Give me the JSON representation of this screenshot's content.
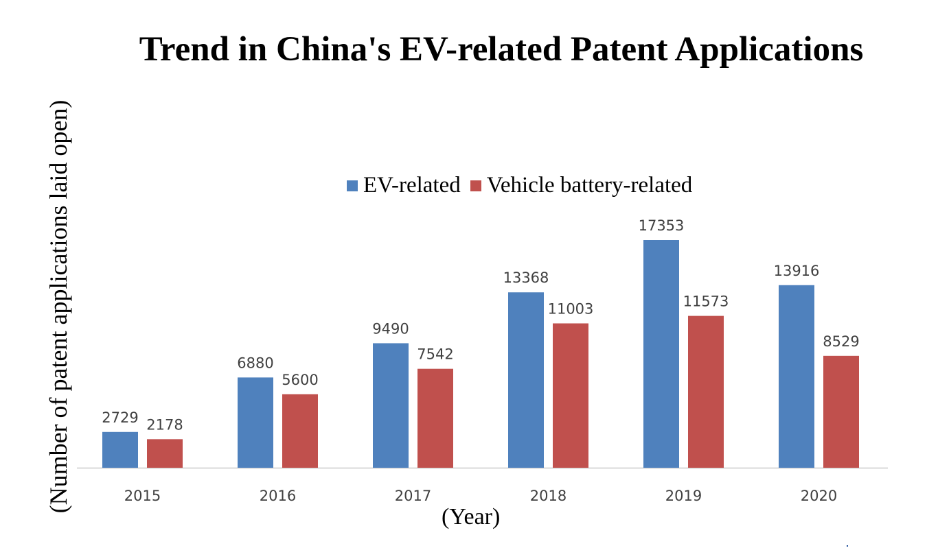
{
  "chart_data": {
    "type": "bar",
    "title": "Trend in China's EV-related Patent Applications",
    "xlabel": "(Year)",
    "ylabel": "(Number of patent applications laid open)",
    "categories": [
      "2015",
      "2016",
      "2017",
      "2018",
      "2019",
      "2020"
    ],
    "series": [
      {
        "name": "EV-related",
        "color": "#4f81bd",
        "values": [
          2729,
          6880,
          9490,
          13368,
          17353,
          13916
        ]
      },
      {
        "name": "Vehicle battery-related",
        "color": "#c0504d",
        "values": [
          2178,
          5600,
          7542,
          11003,
          11573,
          8529
        ]
      }
    ],
    "ylim": [
      0,
      17353
    ],
    "grid": false,
    "legend_position": "top"
  }
}
